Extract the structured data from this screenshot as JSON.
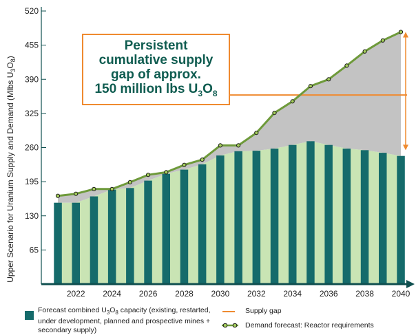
{
  "chart_data": {
    "type": "bar",
    "ylabel": "Upper Scenario for Uranium Supply and Demand (Mlbs U3O8)",
    "ylabel_parts": [
      "Upper Scenario for Uranium Supply and Demand (Mlbs U",
      "3",
      "O",
      "8",
      ")"
    ],
    "y_ticks": [
      65,
      130,
      195,
      260,
      325,
      390,
      455,
      520
    ],
    "ylim": [
      0,
      520
    ],
    "xlim": [
      2021,
      2040
    ],
    "x_ticks": [
      2022,
      2024,
      2026,
      2028,
      2030,
      2032,
      2034,
      2036,
      2038,
      2040
    ],
    "categories": [
      2021,
      2022,
      2023,
      2024,
      2025,
      2026,
      2027,
      2028,
      2029,
      2030,
      2031,
      2032,
      2033,
      2034,
      2035,
      2036,
      2037,
      2038,
      2039,
      2040
    ],
    "series": [
      {
        "name": "Forecast combined U3O8 capacity (existing, restarted, under development, planned and prospective mines + secondary supply)",
        "type": "bar",
        "values": [
          155,
          155,
          167,
          180,
          183,
          197,
          210,
          218,
          228,
          245,
          253,
          254,
          258,
          265,
          272,
          265,
          258,
          255,
          250,
          244
        ]
      },
      {
        "name": "Demand forecast: Reactor requirements",
        "type": "line",
        "values": [
          168,
          172,
          181,
          181,
          194,
          208,
          213,
          227,
          237,
          264,
          264,
          288,
          326,
          348,
          377,
          390,
          416,
          443,
          464,
          480
        ]
      }
    ],
    "supply_gap": {
      "line_value": 360,
      "arrow_from": 480,
      "arrow_to": 255
    },
    "annotation_lines": [
      "Persistent",
      "cumulative supply",
      "gap of approx."
    ],
    "annotation_last": {
      "pre": "150 million lbs U",
      "sub1": "3",
      "mid": "O",
      "sub2": "8"
    },
    "legend": {
      "bars_parts": [
        "Forecast combined U",
        "3",
        "O",
        "8",
        " capacity (existing, restarted,"
      ],
      "bars_line2": "under development, planned and prospective mines +",
      "bars_line3": "secondary supply)",
      "gap": "Supply gap",
      "demand": "Demand forecast: Reactor requirements"
    },
    "colors": {
      "bar": "#156b6b",
      "bar_light": "#c9e4b4",
      "gap_fill": "#c3c3c3",
      "line": "#6e9a3a",
      "marker": "#a5cf5c",
      "orange": "#ef8a2f",
      "axis": "#0f4f4f"
    },
    "grid": false
  }
}
